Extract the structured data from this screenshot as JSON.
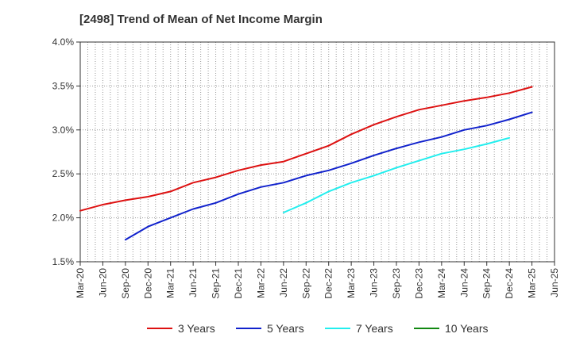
{
  "chart_data": {
    "type": "line",
    "title": "[2498]  Trend of Mean of Net Income Margin",
    "xlabel": "",
    "ylabel": "",
    "x_ticks": [
      "Mar-20",
      "Jun-20",
      "Sep-20",
      "Dec-20",
      "Mar-21",
      "Jun-21",
      "Sep-21",
      "Dec-21",
      "Mar-22",
      "Jun-22",
      "Sep-22",
      "Dec-22",
      "Mar-23",
      "Jun-23",
      "Sep-23",
      "Dec-23",
      "Mar-24",
      "Jun-24",
      "Sep-24",
      "Dec-24",
      "Mar-25",
      "Jun-25"
    ],
    "y_ticks": [
      "1.5%",
      "2.0%",
      "2.5%",
      "3.0%",
      "3.5%",
      "4.0%"
    ],
    "ylim": [
      1.5,
      4.0
    ],
    "grid": true,
    "legend_position": "bottom",
    "series": [
      {
        "name": "3 Years",
        "color": "#dd1111",
        "start_index": 0,
        "values": [
          2.08,
          2.15,
          2.2,
          2.24,
          2.3,
          2.4,
          2.46,
          2.54,
          2.6,
          2.64,
          2.73,
          2.82,
          2.95,
          3.06,
          3.15,
          3.23,
          3.28,
          3.33,
          3.37,
          3.42,
          3.49
        ]
      },
      {
        "name": "5 Years",
        "color": "#1122cc",
        "start_index": 2,
        "values": [
          1.75,
          1.9,
          2.0,
          2.1,
          2.17,
          2.27,
          2.35,
          2.4,
          2.48,
          2.54,
          2.62,
          2.71,
          2.79,
          2.86,
          2.92,
          3.0,
          3.05,
          3.12,
          3.2
        ]
      },
      {
        "name": "7 Years",
        "color": "#22eeee",
        "start_index": 9,
        "values": [
          2.06,
          2.17,
          2.3,
          2.4,
          2.48,
          2.57,
          2.65,
          2.73,
          2.78,
          2.84,
          2.91
        ]
      },
      {
        "name": "10 Years",
        "color": "#118811",
        "start_index": 0,
        "values": []
      }
    ]
  }
}
